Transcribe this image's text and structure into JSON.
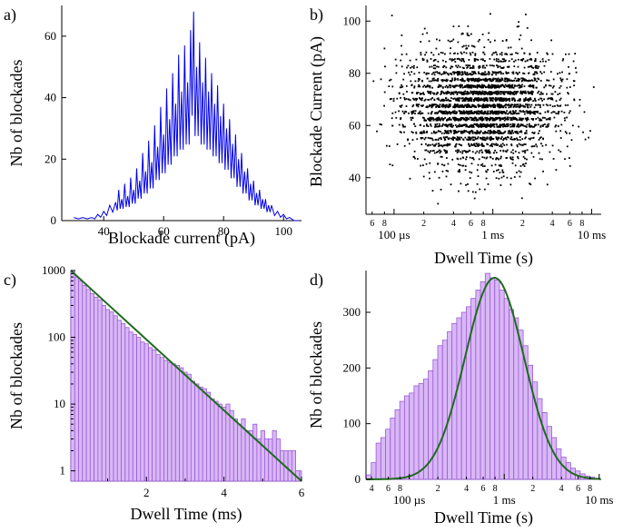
{
  "colors": {
    "hist_a": "#0000ee",
    "scatter": "#000000",
    "bar_fill": "#d9b8f5",
    "bar_edge": "#9a5ad8",
    "fit": "#1e6b1e"
  },
  "panels": {
    "a": "a)",
    "b": "b)",
    "c": "c)",
    "d": "d)"
  },
  "chart_data": [
    {
      "panel": "a)",
      "type": "line",
      "xlabel": "Blockade current (pA)",
      "ylabel": "Nb of blockades",
      "xlim": [
        26,
        106
      ],
      "ylim": [
        0,
        70
      ],
      "xticks": [
        "40",
        "60",
        "80",
        "100"
      ],
      "yticks": [
        "0",
        "20",
        "40",
        "60"
      ],
      "grid": false,
      "peaks": [
        [
          30,
          1
        ],
        [
          33,
          1
        ],
        [
          36,
          1
        ],
        [
          38,
          2
        ],
        [
          40,
          3
        ],
        [
          42,
          5
        ],
        [
          44,
          6
        ],
        [
          45,
          10
        ],
        [
          46,
          7
        ],
        [
          47,
          12
        ],
        [
          48,
          8
        ],
        [
          49,
          14
        ],
        [
          50,
          10
        ],
        [
          51,
          17
        ],
        [
          52,
          13
        ],
        [
          53,
          22
        ],
        [
          54,
          16
        ],
        [
          55,
          26
        ],
        [
          56,
          19
        ],
        [
          57,
          31
        ],
        [
          58,
          24
        ],
        [
          59,
          37
        ],
        [
          60,
          28
        ],
        [
          61,
          43
        ],
        [
          62,
          33
        ],
        [
          63,
          48
        ],
        [
          64,
          38
        ],
        [
          65,
          54
        ],
        [
          66,
          42
        ],
        [
          67,
          57
        ],
        [
          68,
          45
        ],
        [
          69,
          62
        ],
        [
          70,
          68
        ],
        [
          71,
          50
        ],
        [
          72,
          58
        ],
        [
          73,
          45
        ],
        [
          74,
          53
        ],
        [
          75,
          42
        ],
        [
          76,
          48
        ],
        [
          77,
          38
        ],
        [
          78,
          44
        ],
        [
          79,
          34
        ],
        [
          80,
          38
        ],
        [
          81,
          30
        ],
        [
          82,
          33
        ],
        [
          83,
          25
        ],
        [
          84,
          28
        ],
        [
          85,
          20
        ],
        [
          86,
          22
        ],
        [
          87,
          16
        ],
        [
          88,
          17
        ],
        [
          89,
          12
        ],
        [
          90,
          13
        ],
        [
          91,
          9
        ],
        [
          92,
          10
        ],
        [
          93,
          7
        ],
        [
          94,
          7
        ],
        [
          95,
          5
        ],
        [
          96,
          5
        ],
        [
          98,
          3
        ],
        [
          100,
          2
        ],
        [
          102,
          1
        ],
        [
          105,
          0
        ]
      ]
    },
    {
      "panel": "b)",
      "type": "scatter",
      "xlabel": "Dwell Time (s)",
      "ylabel": "Blockade Current (pA)",
      "xscale": "log",
      "xlim": [
        5.2e-05,
        0.0125
      ],
      "ylim": [
        26,
        106
      ],
      "yticks": [
        "40",
        "60",
        "80",
        "100"
      ],
      "xticks_major": [
        {
          "v": 0.0001,
          "label": "100 µs"
        },
        {
          "v": 0.001,
          "label": "1 ms"
        },
        {
          "v": 0.01,
          "label": "10 ms"
        }
      ],
      "xticks_minor": [
        {
          "v": 6e-05,
          "label": "6"
        },
        {
          "v": 8e-05,
          "label": "8"
        },
        {
          "v": 0.0002,
          "label": "2"
        },
        {
          "v": 0.0004,
          "label": "4"
        },
        {
          "v": 0.0006,
          "label": "6"
        },
        {
          "v": 0.0008,
          "label": "8"
        },
        {
          "v": 0.002,
          "label": "2"
        },
        {
          "v": 0.004,
          "label": "4"
        },
        {
          "v": 0.006,
          "label": "6"
        },
        {
          "v": 0.008,
          "label": "8"
        }
      ],
      "distribution": {
        "current_center_pA": 67,
        "current_sd_pA": 11,
        "dwell_center_s": 0.00075,
        "point_count_approx": 7500
      },
      "grid": false
    },
    {
      "panel": "c)",
      "type": "bar",
      "xlabel": "Dwell Time (ms)",
      "ylabel": "Nb of blockades",
      "yscale": "log",
      "xlim": [
        0.05,
        6
      ],
      "ylim": [
        0.7,
        1000
      ],
      "xticks": [
        "2",
        "4",
        "6"
      ],
      "yticks": [
        "1",
        "10",
        "100",
        "1000"
      ],
      "bin_width": 0.1,
      "values": [
        1000,
        800,
        700,
        600,
        520,
        450,
        400,
        360,
        300,
        260,
        240,
        210,
        180,
        160,
        140,
        120,
        110,
        100,
        85,
        80,
        70,
        65,
        55,
        50,
        45,
        42,
        40,
        38,
        35,
        30,
        28,
        22,
        20,
        18,
        17,
        15,
        12,
        11,
        10,
        9,
        10,
        8,
        6,
        5,
        6,
        4,
        4,
        5,
        3,
        4,
        3,
        3,
        4,
        3,
        2,
        2,
        2,
        2,
        1,
        1
      ],
      "fit": {
        "type": "exponential",
        "start": 1000,
        "end": 0.7
      },
      "grid": false
    },
    {
      "panel": "d)",
      "type": "bar",
      "xlabel": "Dwell Time (s)",
      "ylabel": "Nb of blockades",
      "xscale": "log",
      "xlim": [
        3.5e-05,
        0.0105
      ],
      "ylim": [
        0,
        375
      ],
      "yticks": [
        "0",
        "100",
        "200",
        "300"
      ],
      "xticks_major": [
        {
          "v": 0.0001,
          "label": "100 µs"
        },
        {
          "v": 0.001,
          "label": "1 ms"
        },
        {
          "v": 0.01,
          "label": "10 ms"
        }
      ],
      "xticks_minor": [
        {
          "v": 4e-05,
          "label": "4"
        },
        {
          "v": 6e-05,
          "label": "6"
        },
        {
          "v": 8e-05,
          "label": "8"
        },
        {
          "v": 0.0002,
          "label": "2"
        },
        {
          "v": 0.0004,
          "label": "4"
        },
        {
          "v": 0.0006,
          "label": "6"
        },
        {
          "v": 0.0008,
          "label": "8"
        },
        {
          "v": 0.002,
          "label": "2"
        },
        {
          "v": 0.004,
          "label": "4"
        },
        {
          "v": 0.006,
          "label": "6"
        },
        {
          "v": 0.008,
          "label": "8"
        }
      ],
      "bin_edges_log10": [
        -4.45,
        -4.4,
        -4.35,
        -4.3,
        -4.25,
        -4.2,
        -4.15,
        -4.1,
        -4.05,
        -4.0,
        -3.95,
        -3.9,
        -3.85,
        -3.8,
        -3.75,
        -3.7,
        -3.65,
        -3.6,
        -3.55,
        -3.5,
        -3.45,
        -3.4,
        -3.35,
        -3.3,
        -3.25,
        -3.2,
        -3.15,
        -3.1,
        -3.05,
        -3.0,
        -2.95,
        -2.9,
        -2.85,
        -2.8,
        -2.75,
        -2.7,
        -2.65,
        -2.6,
        -2.55,
        -2.5,
        -2.45,
        -2.4,
        -2.35,
        -2.3,
        -2.25,
        -2.2,
        -2.15,
        -2.1,
        -2.05,
        -2.0
      ],
      "values": [
        8,
        30,
        65,
        75,
        90,
        110,
        125,
        140,
        150,
        155,
        168,
        172,
        180,
        195,
        215,
        240,
        250,
        265,
        280,
        290,
        300,
        310,
        325,
        340,
        355,
        370,
        362,
        358,
        340,
        325,
        305,
        290,
        268,
        240,
        205,
        175,
        145,
        120,
        95,
        75,
        55,
        40,
        30,
        20,
        15,
        10,
        6,
        4,
        2
      ],
      "fit": {
        "type": "lognormal",
        "peak": 362,
        "center_s": 0.00079,
        "sigma_log10": 0.31
      },
      "grid": false
    }
  ]
}
